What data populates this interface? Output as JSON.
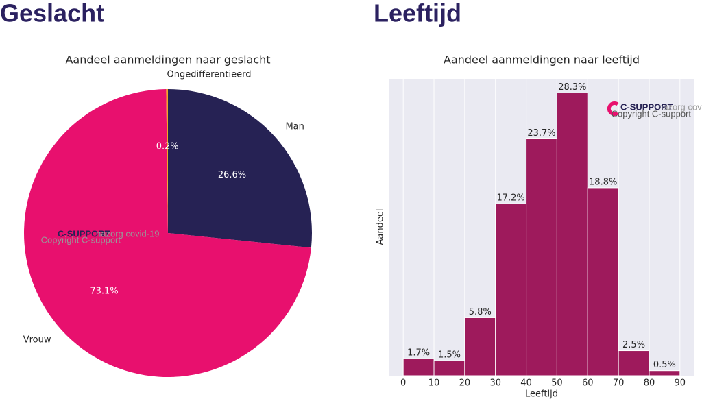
{
  "headings": [
    "Geslacht",
    "Leeftijd"
  ],
  "watermark": {
    "brand": "C-SUPPORT",
    "tagline": "nazorg covid-19",
    "copyright": "Copyright C-support"
  },
  "chart_data": [
    {
      "type": "pie",
      "title": "Aandeel aanmeldingen naar geslacht",
      "categories": [
        "Man",
        "Vrouw",
        "Ongedifferentieerd"
      ],
      "values": [
        26.6,
        73.1,
        0.2
      ],
      "value_labels": [
        "26.6%",
        "73.1%",
        "0.2%"
      ],
      "colors": [
        "#262254",
        "#e8106e",
        "#f5a623"
      ],
      "direction": "clockwise"
    },
    {
      "type": "histogram",
      "title": "Aandeel aanmeldingen naar leeftijd",
      "x_label": "Leeftijd",
      "y_label": "Aandeel",
      "bins": [
        0,
        10,
        20,
        30,
        40,
        50,
        60,
        70,
        80,
        90
      ],
      "values": [
        1.7,
        1.5,
        5.8,
        17.2,
        23.7,
        28.3,
        18.8,
        2.5,
        0.5
      ],
      "value_labels": [
        "1.7%",
        "1.5%",
        "5.8%",
        "17.2%",
        "23.7%",
        "28.3%",
        "18.8%",
        "2.5%",
        "0.5%"
      ],
      "color": "#9e1a5c",
      "xlim": [
        -4.5,
        94.5
      ],
      "ylim": [
        0,
        29.7
      ],
      "xticks": [
        0,
        10,
        20,
        30,
        40,
        50,
        60,
        70,
        80,
        90
      ],
      "grid": true
    }
  ]
}
